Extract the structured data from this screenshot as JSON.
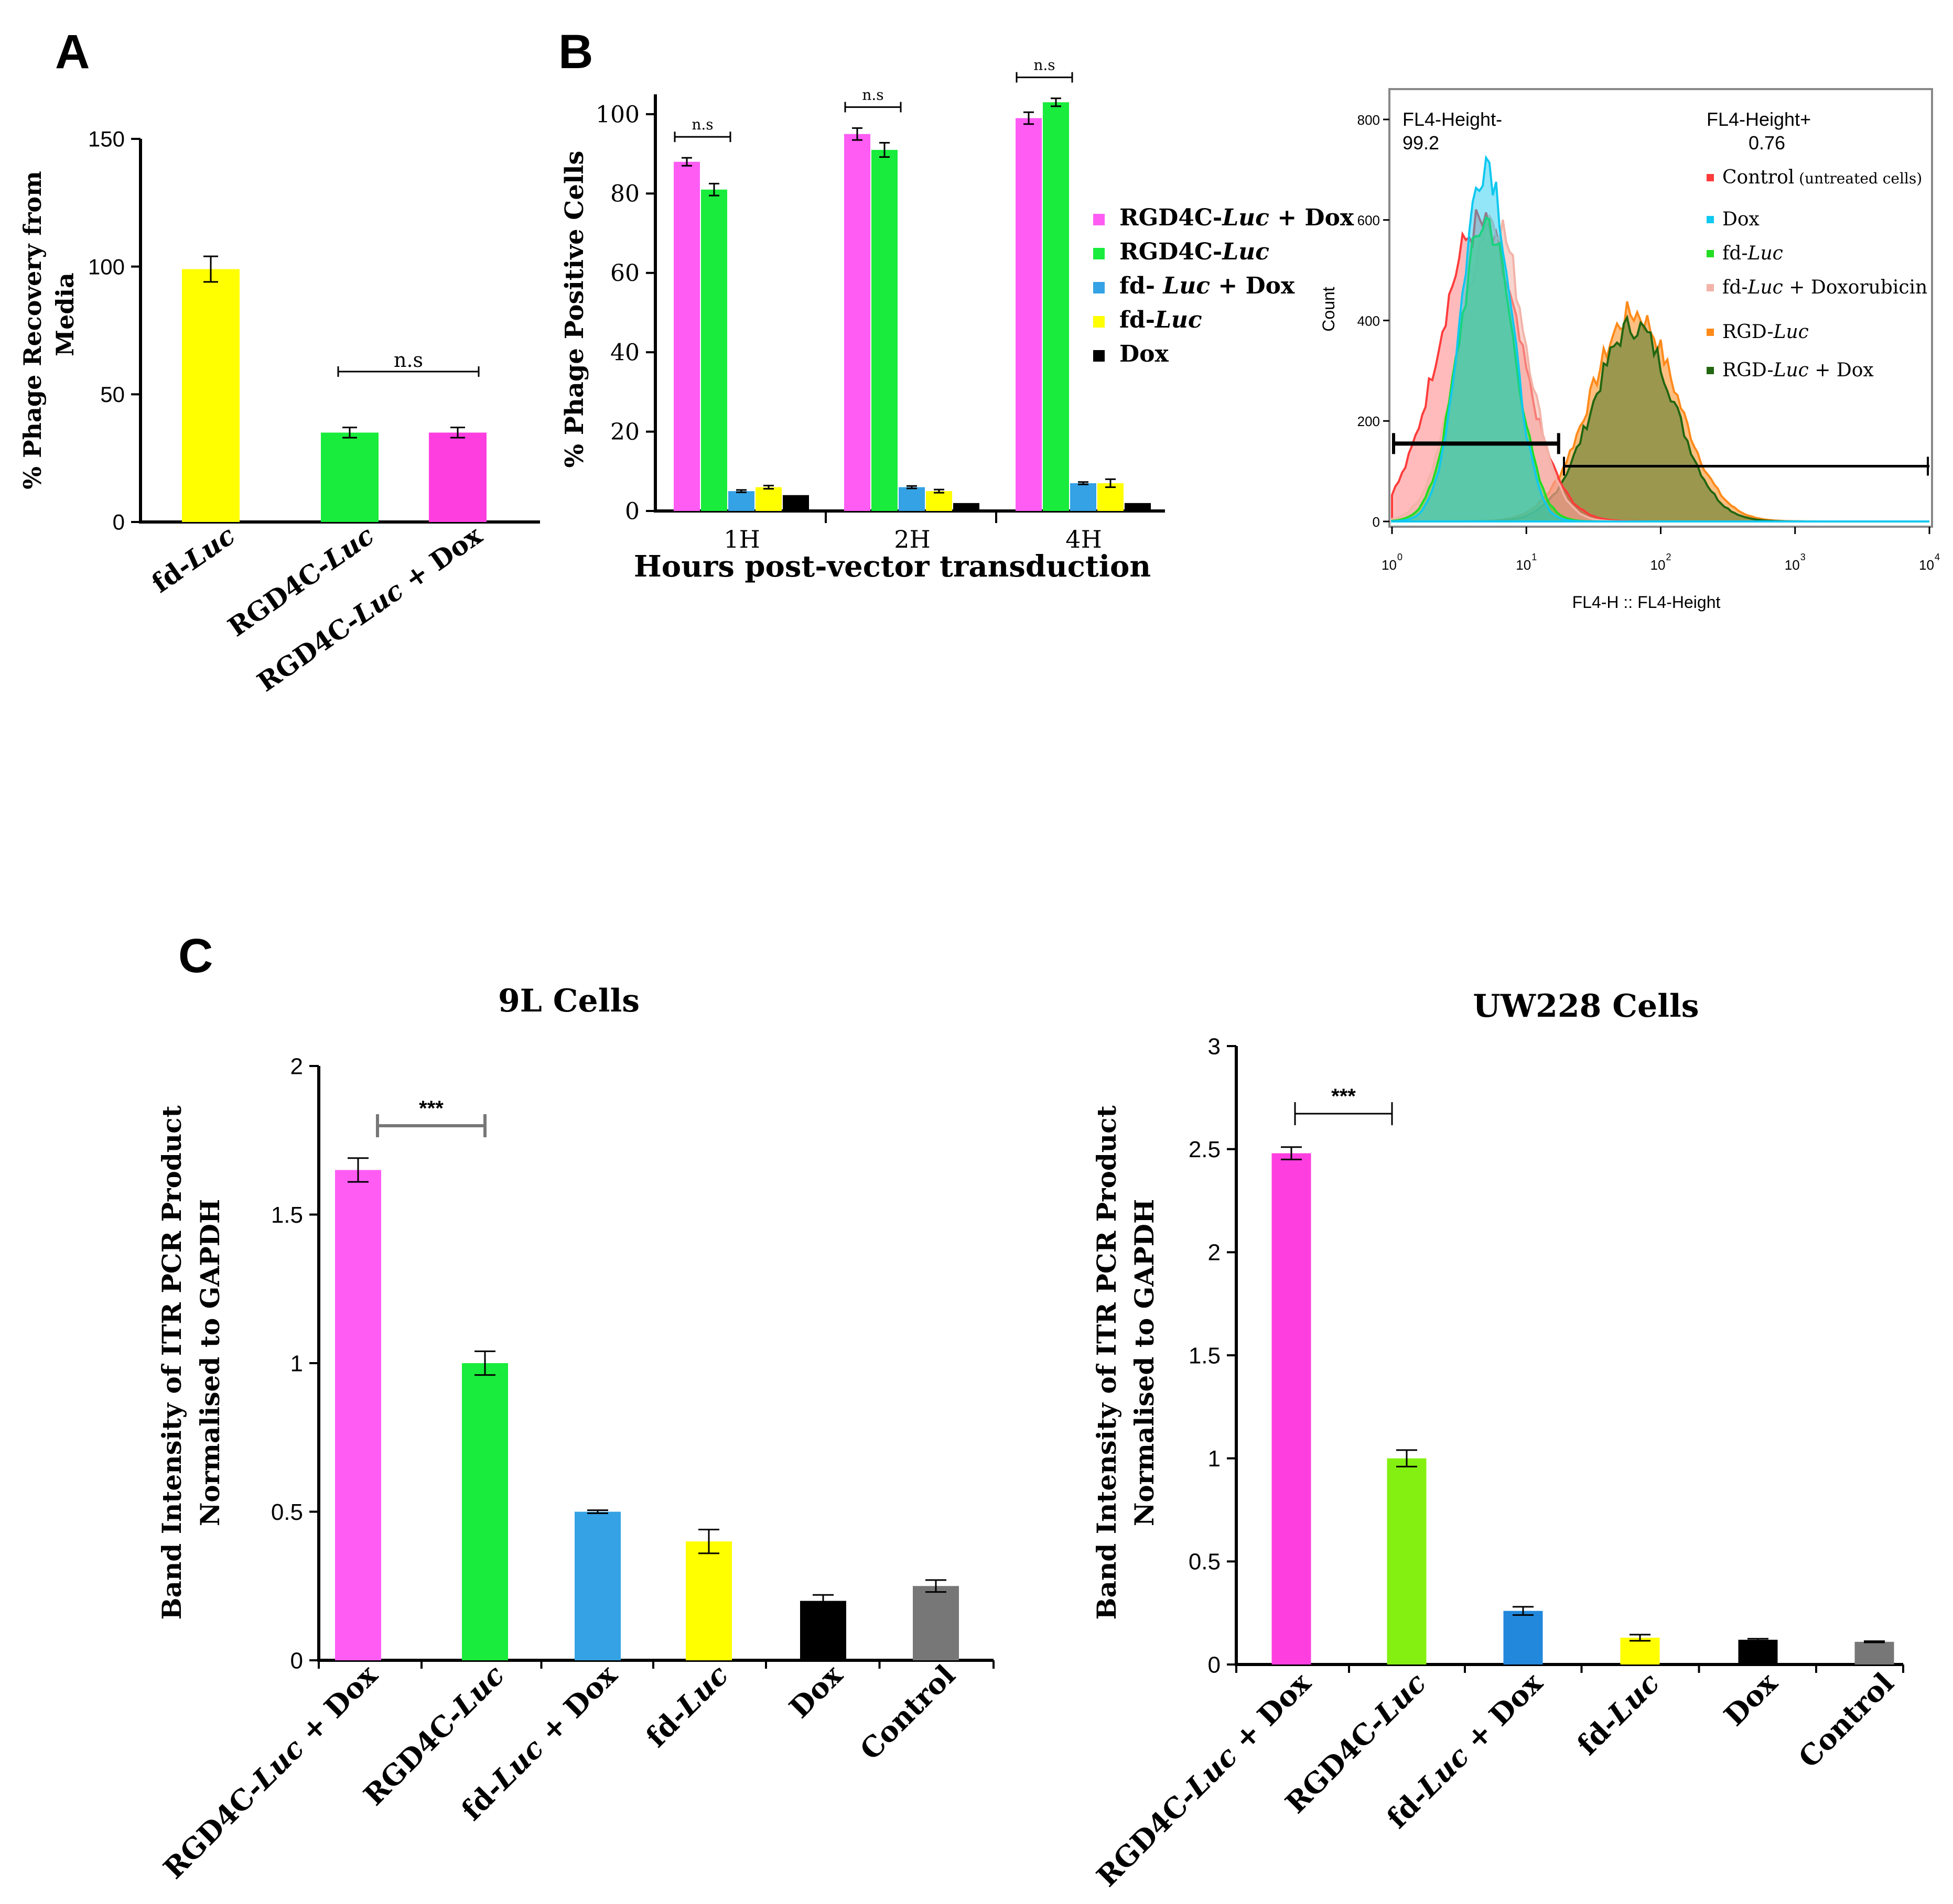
{
  "panel_labels": [
    "A",
    "B",
    "C"
  ],
  "colors": {
    "magenta_light": "#ff5cf4",
    "magenta": "#ff3ee0",
    "green": "#19ec3c",
    "lime": "#84f011",
    "blue": "#34a2e4",
    "blue_dark": "#2288dc",
    "yellow": "#ffff00",
    "black": "#000000",
    "gray": "#777777",
    "flow_red": "#ff3b3b",
    "flow_cyan": "#10c8f0",
    "flow_green": "#22dd22",
    "flow_pink": "#f2b3a8",
    "flow_orange": "#ff8a1a",
    "flow_darkgreen": "#226611"
  },
  "chart_data": [
    {
      "id": "A",
      "type": "bar",
      "title": "",
      "xlabel": "",
      "ylabel": [
        "% Phage Recovery from",
        "Media"
      ],
      "ylim": [
        0,
        150
      ],
      "yticks": [
        "0",
        "50",
        "100",
        "150"
      ],
      "categories": [
        "fd-Luc",
        "RGD4C-Luc",
        "RGD4C-Luc + Dox"
      ],
      "values": [
        99,
        35,
        35
      ],
      "errors": [
        5,
        2,
        2
      ],
      "annotation": {
        "text": "n.s",
        "between": [
          1,
          2
        ]
      }
    },
    {
      "id": "B-bar",
      "type": "bar",
      "title": "",
      "xlabel": "Hours post-vector transduction",
      "ylabel": "% Phage Positive Cells",
      "ylim": [
        0,
        105
      ],
      "yticks": [
        "0",
        "20",
        "40",
        "60",
        "80",
        "100"
      ],
      "categories": [
        "1H",
        "2H",
        "4H"
      ],
      "series": [
        {
          "name": "RGD4C-Luc + Dox",
          "values": [
            88,
            95,
            99
          ],
          "errors": [
            1,
            1.5,
            1.5
          ]
        },
        {
          "name": "RGD4C-Luc",
          "values": [
            81,
            91,
            103
          ],
          "errors": [
            1.5,
            1.8,
            1
          ]
        },
        {
          "name": "fd- Luc + Dox",
          "values": [
            5,
            6,
            7
          ],
          "errors": [
            0.3,
            0.3,
            0.3
          ]
        },
        {
          "name": "fd-Luc",
          "values": [
            6,
            5,
            7
          ],
          "errors": [
            0.4,
            0.4,
            1
          ]
        },
        {
          "name": "Dox",
          "values": [
            4,
            2,
            2
          ],
          "errors": [
            0,
            0,
            0
          ]
        }
      ],
      "annotation": {
        "text": "n.s"
      },
      "legend_placement": "right"
    },
    {
      "id": "B-flow",
      "type": "area",
      "title": "",
      "xlabel": "FL4-H :: FL4-Height",
      "ylabel": "Count",
      "ylim": [
        0,
        850
      ],
      "yticks": [
        "0",
        "200",
        "400",
        "600",
        "800"
      ],
      "xscale": "log",
      "xlim": [
        0,
        4
      ],
      "xticks": [
        "0",
        "1",
        "2",
        "3",
        "4"
      ],
      "gates": [
        {
          "name": "FL4-Height-",
          "value": "99.2"
        },
        {
          "name": "FL4-Height+",
          "value": "0.76"
        }
      ],
      "series": [
        {
          "name": "Control",
          "name_note": "(untreated cells)",
          "peak_x": 0.65,
          "peak_y": 590
        },
        {
          "name": "Dox",
          "peak_x": 0.7,
          "peak_y": 725
        },
        {
          "name": "fd-Luc",
          "peak_x": 0.7,
          "peak_y": 600
        },
        {
          "name": "fd-Luc + Doxorubicin",
          "peak_x": 0.75,
          "peak_y": 610
        },
        {
          "name": "RGD-Luc",
          "peak_x": 1.8,
          "peak_y": 415
        },
        {
          "name": "RGD-Luc + Dox",
          "peak_x": 1.8,
          "peak_y": 390
        }
      ],
      "legend_placement": "top-right"
    },
    {
      "id": "C-9L",
      "type": "bar",
      "title": "9L Cells",
      "xlabel": "",
      "ylabel": [
        "Band Intensity of ITR PCR Product",
        "Normalised to GAPDH"
      ],
      "ylim": [
        0,
        2
      ],
      "yticks": [
        "0",
        "0.5",
        "1",
        "1.5",
        "2"
      ],
      "categories": [
        "RGD4C-Luc + Dox",
        "RGD4C-Luc",
        "fd-Luc + Dox",
        "fd-Luc",
        "Dox",
        "Control"
      ],
      "values": [
        1.65,
        1.0,
        0.5,
        0.4,
        0.2,
        0.25
      ],
      "errors": [
        0.04,
        0.04,
        0.005,
        0.04,
        0.02,
        0.02
      ],
      "annotation": {
        "text": "***",
        "between": [
          0,
          1
        ]
      }
    },
    {
      "id": "C-UW228",
      "type": "bar",
      "title": "UW228 Cells",
      "xlabel": "",
      "ylabel": [
        "Band Intensity of ITR PCR Product",
        "Normalised to GAPDH"
      ],
      "ylim": [
        0,
        3
      ],
      "yticks": [
        "0",
        "0.5",
        "1",
        "1.5",
        "2",
        "2.5",
        "3"
      ],
      "categories": [
        "RGD4C-Luc + Dox",
        "RGD4C-Luc",
        "fd-Luc + Dox",
        "fd-Luc",
        "Dox",
        "Control"
      ],
      "values": [
        2.48,
        1.0,
        0.26,
        0.13,
        0.12,
        0.11
      ],
      "errors": [
        0.03,
        0.04,
        0.02,
        0.015,
        0.005,
        0.003
      ],
      "annotation": {
        "text": "***",
        "between": [
          0,
          1
        ]
      }
    }
  ]
}
